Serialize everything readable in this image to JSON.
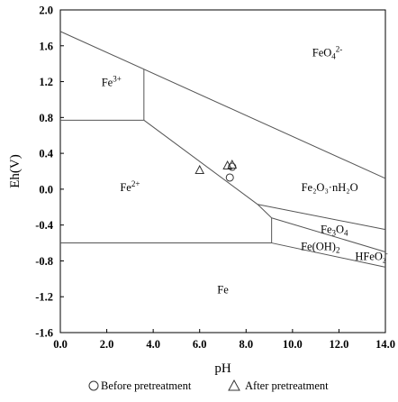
{
  "chart_data": {
    "type": "scatter",
    "xlabel": "pH",
    "ylabel": "Eh(V)",
    "xlim": [
      0,
      14
    ],
    "ylim": [
      -1.6,
      2.0
    ],
    "xticks": [
      0,
      2,
      4,
      6,
      8,
      10,
      12,
      14
    ],
    "xtick_labels": [
      "0.0",
      "2.0",
      "4.0",
      "6.0",
      "8.0",
      "10.0",
      "12.0",
      "14.0"
    ],
    "yticks": [
      2.0,
      1.6,
      1.2,
      0.8,
      0.4,
      0.0,
      -0.4,
      -0.8,
      -1.2,
      -1.6
    ],
    "ytick_labels": [
      "2.0",
      "1.6",
      "1.2",
      "0.8",
      "0.4",
      "0.0",
      "-0.4",
      "-0.8",
      "-1.2",
      "-1.6"
    ],
    "grid": false,
    "boundaries": [
      {
        "x": [
          0,
          14
        ],
        "y": [
          1.76,
          0.12
        ]
      },
      {
        "x": [
          0,
          3.6
        ],
        "y": [
          0.77,
          0.77
        ]
      },
      {
        "x": [
          3.6,
          3.6
        ],
        "y": [
          0.77,
          1.34
        ]
      },
      {
        "x": [
          3.6,
          8.5
        ],
        "y": [
          0.77,
          -0.17
        ]
      },
      {
        "x": [
          8.5,
          9.1
        ],
        "y": [
          -0.17,
          -0.32
        ]
      },
      {
        "x": [
          9.1,
          9.1
        ],
        "y": [
          -0.32,
          -0.6
        ]
      },
      {
        "x": [
          0,
          9.1
        ],
        "y": [
          -0.6,
          -0.6
        ]
      },
      {
        "x": [
          8.5,
          14
        ],
        "y": [
          -0.17,
          -0.45
        ]
      },
      {
        "x": [
          9.1,
          14
        ],
        "y": [
          -0.32,
          -0.7
        ]
      },
      {
        "x": [
          9.1,
          14
        ],
        "y": [
          -0.6,
          -0.87
        ]
      }
    ],
    "regions": [
      {
        "label": "Fe",
        "sup": "3+",
        "x": 2.2,
        "y": 1.19
      },
      {
        "label": "FeO",
        "sub": "4",
        "sup": "2-",
        "x": 11.5,
        "y": 1.52
      },
      {
        "label": "Fe",
        "sup": "2+",
        "x": 3.0,
        "y": 0.02
      },
      {
        "label": "Fe₂O₃·nH₂O",
        "x": 11.6,
        "y": 0.02
      },
      {
        "label": "Fe",
        "sub": "3",
        "label2": "O",
        "sub2": "4",
        "x": 11.8,
        "y": -0.45
      },
      {
        "label": "Fe(OH)",
        "sub": "2",
        "x": 11.2,
        "y": -0.64
      },
      {
        "label": "HFeO",
        "sub": "2",
        "sup": "-",
        "x": 13.4,
        "y": -0.75
      },
      {
        "label": "Fe",
        "x": 7.0,
        "y": -1.12
      }
    ],
    "series": [
      {
        "name": "Before pretreatment",
        "marker": "circle",
        "points": [
          [
            7.3,
            0.13
          ],
          [
            7.4,
            0.25
          ]
        ]
      },
      {
        "name": "After pretreatment",
        "marker": "triangle",
        "points": [
          [
            6.0,
            0.21
          ],
          [
            7.2,
            0.26
          ],
          [
            7.4,
            0.27
          ]
        ]
      }
    ],
    "legend_placement": "bottom"
  }
}
